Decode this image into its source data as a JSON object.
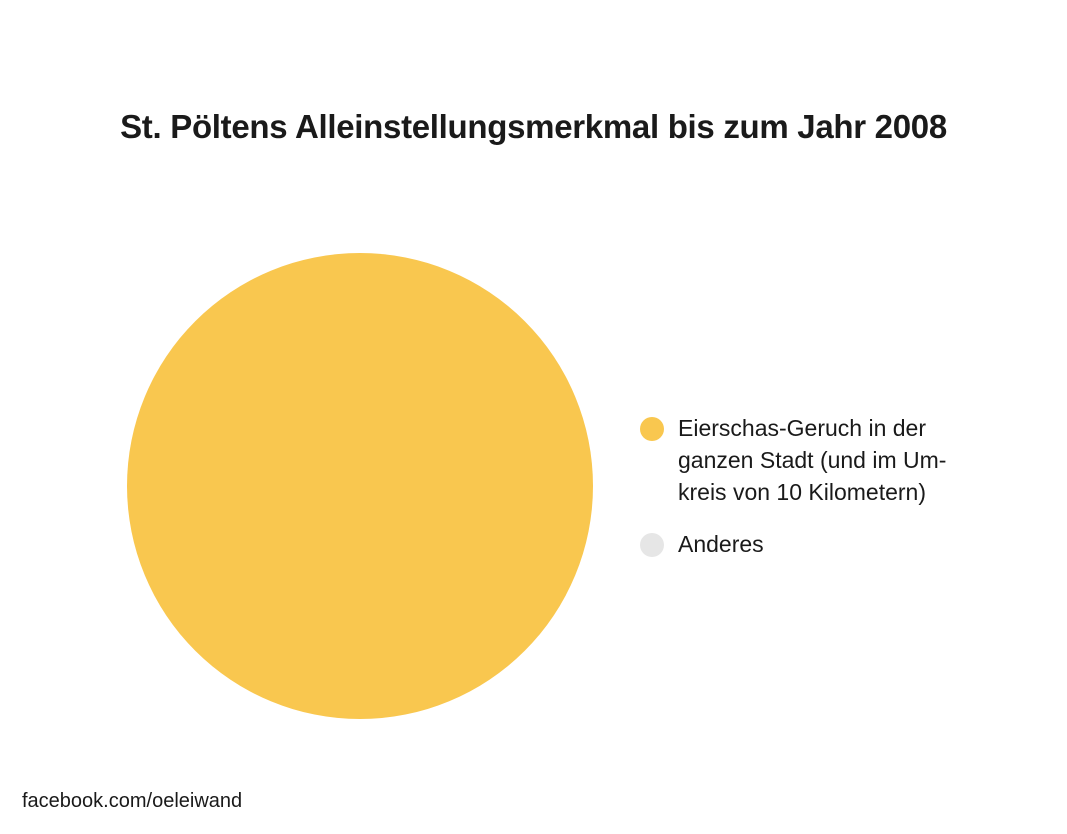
{
  "chart_data": {
    "type": "pie",
    "title": "St. Pöltens Alleinstellungsmerkmal bis zum Jahr 2008",
    "legend_position": "right",
    "series": [
      {
        "name": "Eierschas-Geruch in der ganzen Stadt (und im Um-kreis von 10 Kilometern)",
        "value": 100,
        "color": "#F9C74F"
      },
      {
        "name": "Anderes",
        "value": 0,
        "color": "#E6E6E6"
      }
    ]
  },
  "legend": {
    "items": [
      {
        "label_lines": [
          "Eierschas-Geruch in der",
          "ganzen Stadt (und im Um-",
          "kreis von 10 Kilometern)"
        ],
        "color": "#F9C74F"
      },
      {
        "label_lines": [
          "Anderes"
        ],
        "color": "#E6E6E6"
      }
    ]
  },
  "footer": {
    "text": "facebook.com/oeleiwand"
  }
}
